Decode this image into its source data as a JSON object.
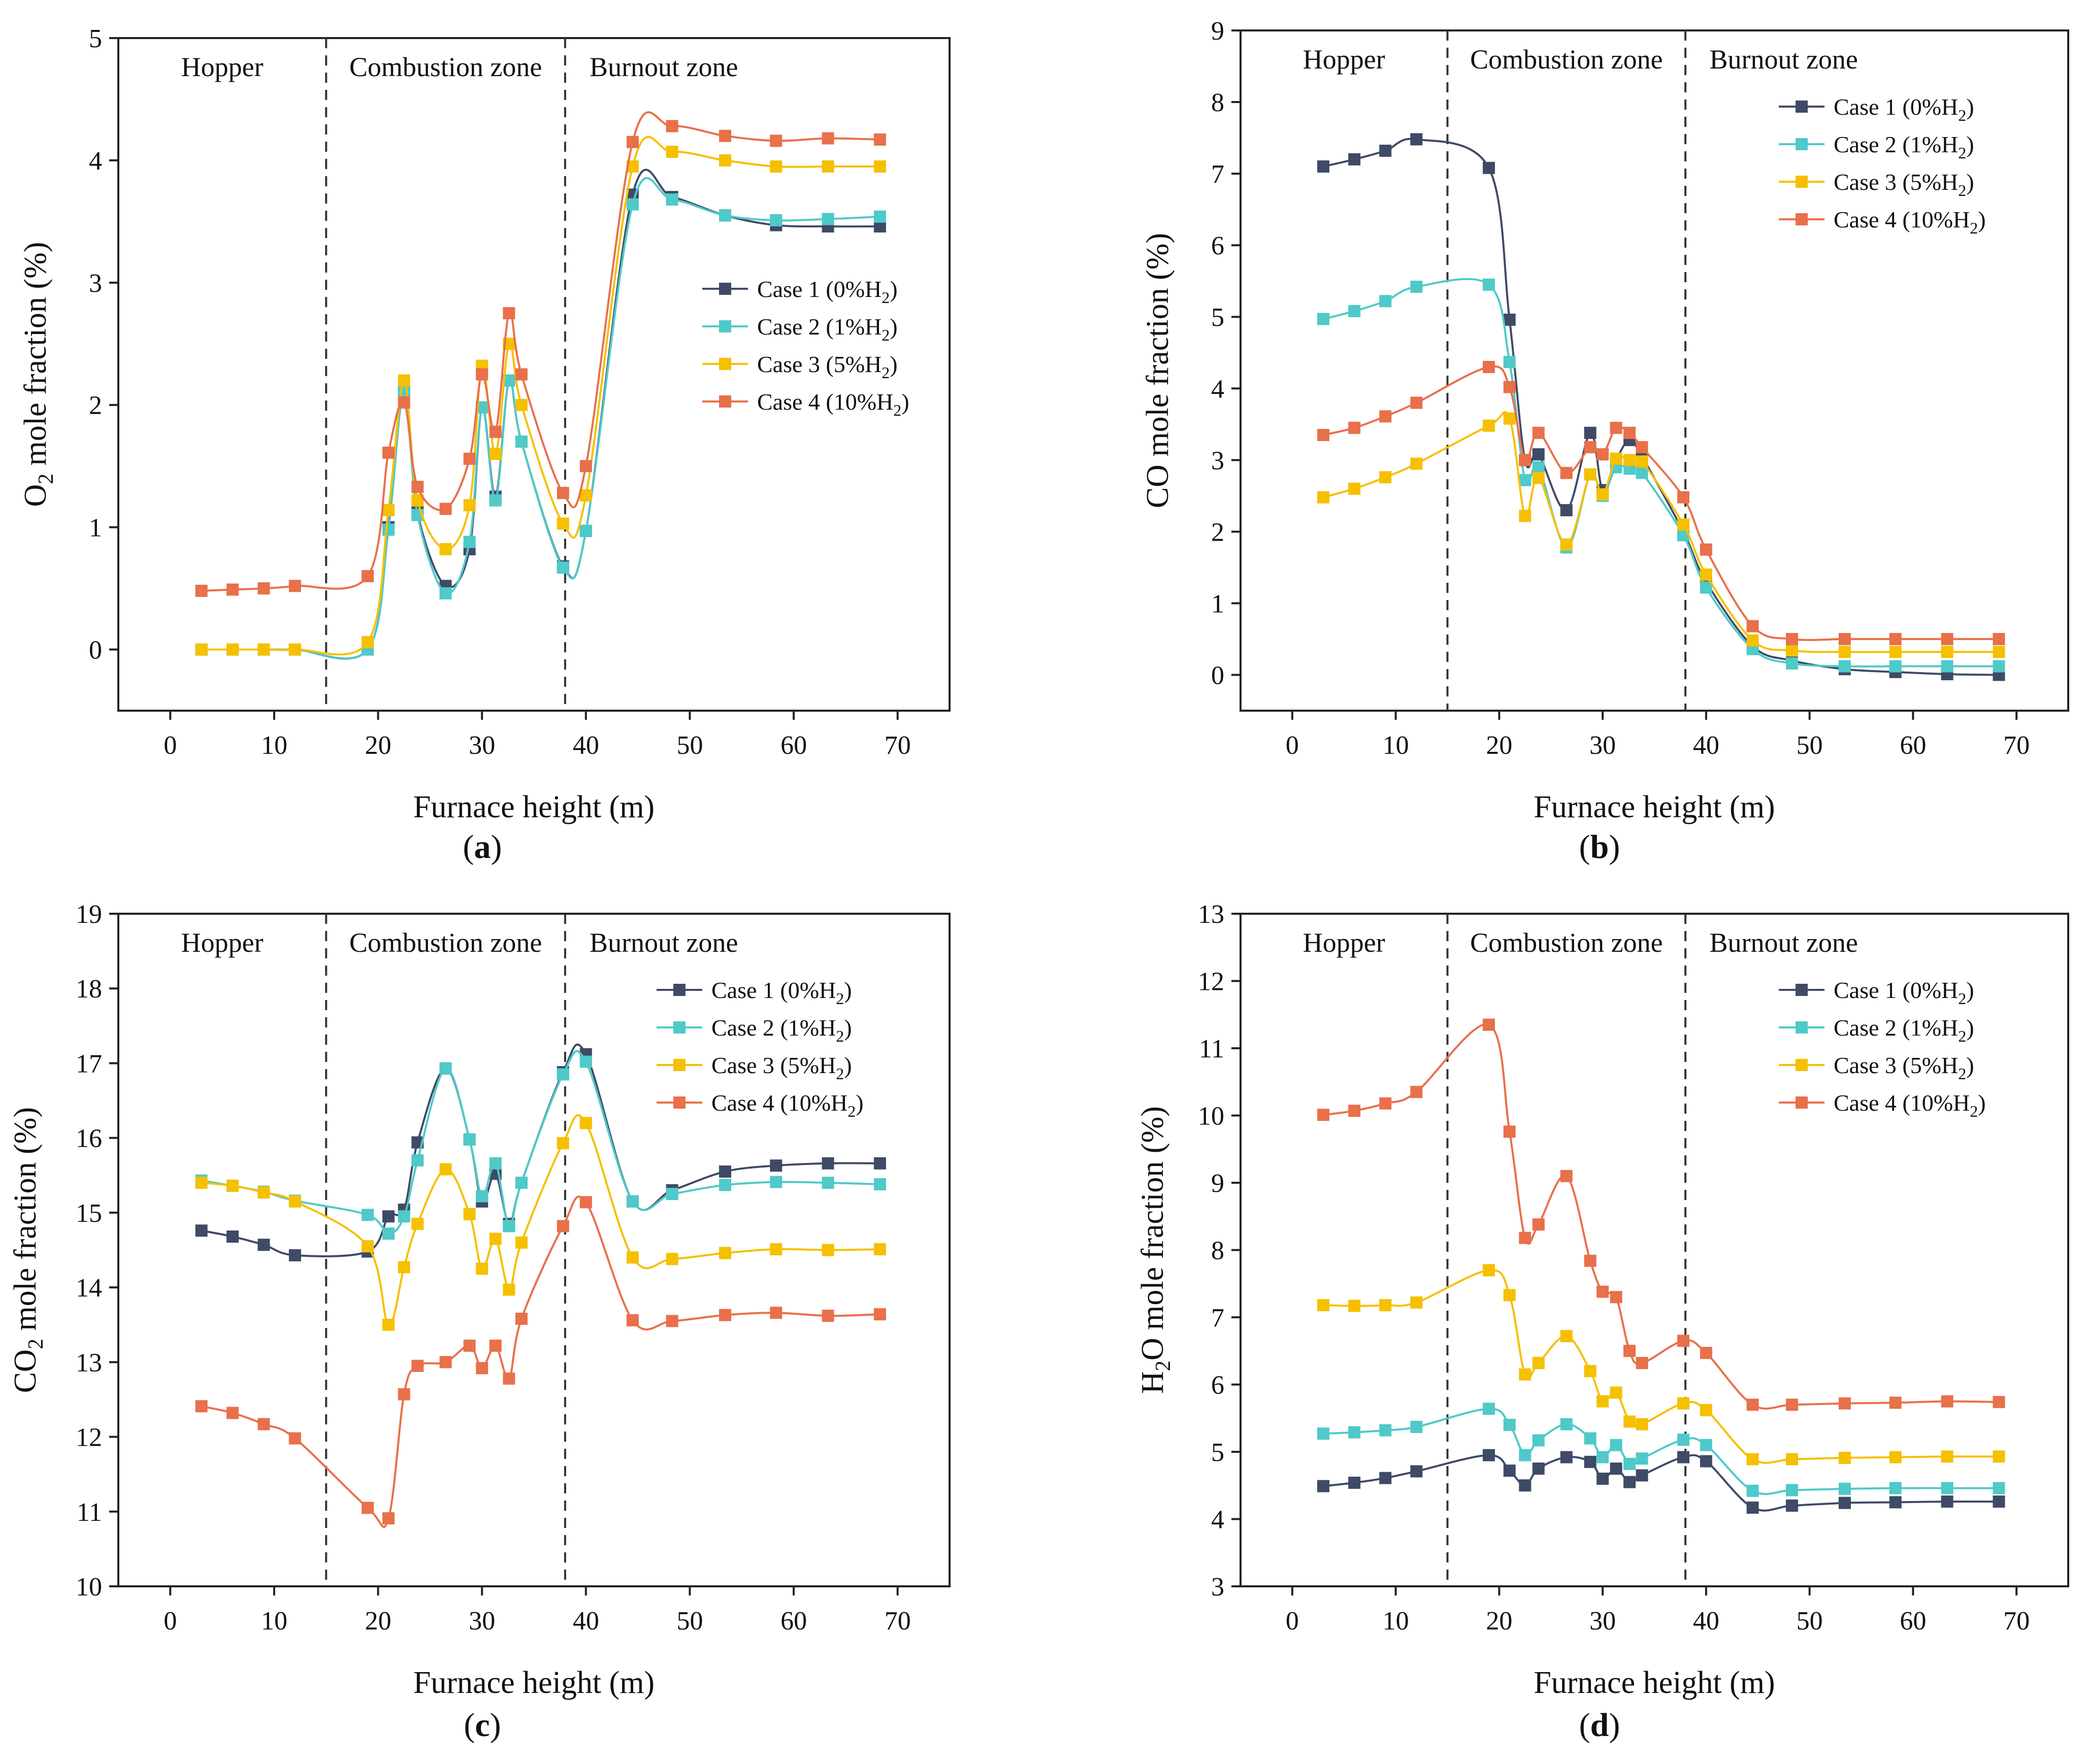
{
  "chart_data": [
    {
      "type": "line",
      "panel_label": "a",
      "xlabel": "Furnace height (m)",
      "ylabel": "O2 mole fraction (%)",
      "ylabel_main": "O",
      "ylabel_sub": "2",
      "ylabel_rest": " mole fraction (%)",
      "xlim": [
        -5,
        75
      ],
      "ylim": [
        -0.5,
        5
      ],
      "xticks": [
        0,
        10,
        20,
        30,
        40,
        50,
        60,
        70
      ],
      "yticks": [
        0,
        1,
        2,
        3,
        4,
        5
      ],
      "zone_boundaries": [
        15,
        38
      ],
      "zones": [
        "Hopper",
        "Combustion zone",
        "Burnout zone"
      ],
      "legend_position": "middle-right",
      "series": [
        {
          "name": "Case 1 (0%H2)",
          "label_prefix": "Case 1 (0%H",
          "label_sub": "2",
          "label_suffix": ")",
          "color": "#3f4a66",
          "x": [
            3,
            6,
            9,
            12,
            19,
            21,
            22.5,
            23.8,
            26.5,
            28.8,
            30,
            31.3,
            32.6,
            33.8,
            37.8,
            40,
            44.5,
            48.3,
            53.4,
            58.3,
            63.3,
            68.3
          ],
          "y": [
            0,
            0,
            0,
            0,
            0,
            1,
            2.12,
            1.12,
            0.52,
            0.82,
            1.98,
            1.25,
            2.2,
            1.7,
            0.68,
            0.97,
            3.72,
            3.7,
            3.55,
            3.47,
            3.46,
            3.46
          ]
        },
        {
          "name": "Case 2 (1%H2)",
          "label_prefix": "Case 2 (1%H",
          "label_sub": "2",
          "label_suffix": ")",
          "color": "#4fc9c9",
          "x": [
            3,
            6,
            9,
            12,
            19,
            21,
            22.5,
            23.8,
            26.5,
            28.8,
            30,
            31.3,
            32.6,
            33.8,
            37.8,
            40,
            44.5,
            48.3,
            53.4,
            58.3,
            63.3,
            68.3
          ],
          "y": [
            0,
            0,
            0,
            0,
            0,
            0.98,
            2.12,
            1.1,
            0.46,
            0.88,
            1.98,
            1.22,
            2.2,
            1.7,
            0.67,
            0.97,
            3.64,
            3.68,
            3.55,
            3.51,
            3.52,
            3.54
          ]
        },
        {
          "name": "Case 3 (5%H2)",
          "label_prefix": "Case 3 (5%H",
          "label_sub": "2",
          "label_suffix": ")",
          "color": "#f5c000",
          "x": [
            3,
            6,
            9,
            12,
            19,
            21,
            22.5,
            23.8,
            26.5,
            28.8,
            30,
            31.3,
            32.6,
            33.8,
            37.8,
            40,
            44.5,
            48.3,
            53.4,
            58.3,
            63.3,
            68.3
          ],
          "y": [
            0,
            0,
            0,
            0,
            0.06,
            1.14,
            2.2,
            1.22,
            0.82,
            1.18,
            2.32,
            1.6,
            2.5,
            2.0,
            1.03,
            1.26,
            3.95,
            4.07,
            4.0,
            3.95,
            3.95,
            3.95
          ]
        },
        {
          "name": "Case 4 (10%H2)",
          "label_prefix": "Case 4 (10%H",
          "label_sub": "2",
          "label_suffix": ")",
          "color": "#e8704a",
          "x": [
            3,
            6,
            9,
            12,
            19,
            21,
            22.5,
            23.8,
            26.5,
            28.8,
            30,
            31.3,
            32.6,
            33.8,
            37.8,
            40,
            44.5,
            48.3,
            53.4,
            58.3,
            63.3,
            68.3
          ],
          "y": [
            0.48,
            0.49,
            0.5,
            0.52,
            0.6,
            1.61,
            2.02,
            1.33,
            1.15,
            1.56,
            2.25,
            1.78,
            2.75,
            2.25,
            1.28,
            1.5,
            4.15,
            4.28,
            4.2,
            4.16,
            4.18,
            4.17
          ]
        }
      ]
    },
    {
      "type": "line",
      "panel_label": "b",
      "xlabel": "Furnace height (m)",
      "ylabel": "CO mole fraction (%)",
      "ylabel_main": "CO mole fraction (%)",
      "ylabel_sub": "",
      "ylabel_rest": "",
      "xlim": [
        -5,
        75
      ],
      "ylim": [
        -0.5,
        9
      ],
      "xticks": [
        0,
        10,
        20,
        30,
        40,
        50,
        60,
        70
      ],
      "yticks": [
        0,
        1,
        2,
        3,
        4,
        5,
        6,
        7,
        8,
        9
      ],
      "zone_boundaries": [
        15,
        38
      ],
      "zones": [
        "Hopper",
        "Combustion zone",
        "Burnout zone"
      ],
      "legend_position": "top-right",
      "series": [
        {
          "name": "Case 1 (0%H2)",
          "label_prefix": "Case 1 (0%H",
          "label_sub": "2",
          "label_suffix": ")",
          "color": "#3f4a66",
          "x": [
            3,
            6,
            9,
            12,
            19,
            21,
            22.5,
            23.8,
            26.5,
            28.8,
            30,
            31.3,
            32.6,
            33.8,
            37.8,
            40,
            44.5,
            48.3,
            53.4,
            58.3,
            63.3,
            68.3
          ],
          "y": [
            7.1,
            7.2,
            7.32,
            7.48,
            7.08,
            4.96,
            3.0,
            3.08,
            2.3,
            3.38,
            2.58,
            3.0,
            3.28,
            3.05,
            2.0,
            1.3,
            0.4,
            0.2,
            0.08,
            0.04,
            0.01,
            0.0
          ]
        },
        {
          "name": "Case 2 (1%H2)",
          "label_prefix": "Case 2 (1%H",
          "label_sub": "2",
          "label_suffix": ")",
          "color": "#4fc9c9",
          "x": [
            3,
            6,
            9,
            12,
            19,
            21,
            22.5,
            23.8,
            26.5,
            28.8,
            30,
            31.3,
            32.6,
            33.8,
            37.8,
            40,
            44.5,
            48.3,
            53.4,
            58.3,
            63.3,
            68.3
          ],
          "y": [
            4.97,
            5.08,
            5.22,
            5.42,
            5.45,
            4.37,
            2.72,
            2.9,
            1.78,
            2.8,
            2.5,
            2.9,
            2.88,
            2.82,
            1.95,
            1.22,
            0.36,
            0.16,
            0.12,
            0.12,
            0.12,
            0.12
          ]
        },
        {
          "name": "Case 3 (5%H2)",
          "label_prefix": "Case 3 (5%H",
          "label_sub": "2",
          "label_suffix": ")",
          "color": "#f5c000",
          "x": [
            3,
            6,
            9,
            12,
            19,
            21,
            22.5,
            23.8,
            26.5,
            28.8,
            30,
            31.3,
            32.6,
            33.8,
            37.8,
            40,
            44.5,
            48.3,
            53.4,
            58.3,
            63.3,
            68.3
          ],
          "y": [
            2.48,
            2.6,
            2.76,
            2.95,
            3.48,
            3.58,
            2.22,
            2.75,
            1.82,
            2.8,
            2.52,
            3.02,
            3.0,
            2.98,
            2.1,
            1.4,
            0.48,
            0.34,
            0.32,
            0.32,
            0.32,
            0.32
          ]
        },
        {
          "name": "Case 4 (10%H2)",
          "label_prefix": "Case 4 (10%H",
          "label_sub": "2",
          "label_suffix": ")",
          "color": "#e8704a",
          "x": [
            3,
            6,
            9,
            12,
            19,
            21,
            22.5,
            23.8,
            26.5,
            28.8,
            30,
            31.3,
            32.6,
            33.8,
            37.8,
            40,
            44.5,
            48.3,
            53.4,
            58.3,
            63.3,
            68.3
          ],
          "y": [
            3.35,
            3.45,
            3.61,
            3.8,
            4.3,
            4.02,
            3.0,
            3.38,
            2.82,
            3.18,
            3.08,
            3.45,
            3.38,
            3.18,
            2.48,
            1.75,
            0.68,
            0.5,
            0.5,
            0.5,
            0.5,
            0.5
          ]
        }
      ]
    },
    {
      "type": "line",
      "panel_label": "c",
      "xlabel": "Furnace height (m)",
      "ylabel": "CO2 mole fraction (%)",
      "ylabel_main": "CO",
      "ylabel_sub": "2",
      "ylabel_rest": " mole fraction (%)",
      "xlim": [
        -5,
        75
      ],
      "ylim": [
        10,
        19
      ],
      "xticks": [
        0,
        10,
        20,
        30,
        40,
        50,
        60,
        70
      ],
      "yticks": [
        10,
        11,
        12,
        13,
        14,
        15,
        16,
        17,
        18,
        19
      ],
      "zone_boundaries": [
        15,
        38
      ],
      "zones": [
        "Hopper",
        "Combustion zone",
        "Burnout zone"
      ],
      "legend_position": "top-right",
      "series": [
        {
          "name": "Case 1 (0%H2)",
          "label_prefix": "Case 1 (0%H",
          "label_sub": "2",
          "label_suffix": ")",
          "color": "#3f4a66",
          "x": [
            3,
            6,
            9,
            12,
            19,
            21,
            22.5,
            23.8,
            26.5,
            28.8,
            30,
            31.3,
            32.6,
            33.8,
            37.8,
            40,
            44.5,
            48.3,
            53.4,
            58.3,
            63.3,
            68.3
          ],
          "y": [
            14.76,
            14.68,
            14.57,
            14.43,
            14.48,
            14.95,
            15.04,
            15.94,
            16.93,
            15.98,
            15.15,
            15.52,
            14.85,
            15.4,
            16.88,
            17.12,
            15.15,
            15.3,
            15.55,
            15.63,
            15.66,
            15.66
          ]
        },
        {
          "name": "Case 2 (1%H2)",
          "label_prefix": "Case 2 (1%H",
          "label_sub": "2",
          "label_suffix": ")",
          "color": "#4fc9c9",
          "x": [
            3,
            6,
            9,
            12,
            19,
            21,
            22.5,
            23.8,
            26.5,
            28.8,
            30,
            31.3,
            32.6,
            33.8,
            37.8,
            40,
            44.5,
            48.3,
            53.4,
            58.3,
            63.3,
            68.3
          ],
          "y": [
            15.43,
            15.36,
            15.28,
            15.16,
            14.97,
            14.72,
            14.95,
            15.7,
            16.93,
            15.98,
            15.22,
            15.66,
            14.82,
            15.4,
            16.85,
            17.02,
            15.15,
            15.25,
            15.37,
            15.41,
            15.4,
            15.38
          ]
        },
        {
          "name": "Case 3 (5%H2)",
          "label_prefix": "Case 3 (5%H",
          "label_sub": "2",
          "label_suffix": ")",
          "color": "#f5c000",
          "x": [
            3,
            6,
            9,
            12,
            19,
            21,
            22.5,
            23.8,
            26.5,
            28.8,
            30,
            31.3,
            32.6,
            33.8,
            37.8,
            40,
            44.5,
            48.3,
            53.4,
            58.3,
            63.3,
            68.3
          ],
          "y": [
            15.4,
            15.36,
            15.27,
            15.15,
            14.55,
            13.5,
            14.27,
            14.85,
            15.58,
            14.98,
            14.25,
            14.65,
            13.97,
            14.6,
            15.93,
            16.2,
            14.4,
            14.38,
            14.46,
            14.51,
            14.5,
            14.51
          ]
        },
        {
          "name": "Case 4 (10%H2)",
          "label_prefix": "Case 4 (10%H",
          "label_sub": "2",
          "label_suffix": ")",
          "color": "#e8704a",
          "x": [
            3,
            6,
            9,
            12,
            19,
            21,
            22.5,
            23.8,
            26.5,
            28.8,
            30,
            31.3,
            32.6,
            33.8,
            37.8,
            40,
            44.5,
            48.3,
            53.4,
            58.3,
            63.3,
            68.3
          ],
          "y": [
            12.41,
            12.32,
            12.17,
            11.98,
            11.05,
            10.91,
            12.57,
            12.95,
            13.0,
            13.22,
            12.92,
            13.22,
            12.78,
            13.58,
            14.82,
            15.14,
            13.56,
            13.55,
            13.63,
            13.66,
            13.62,
            13.64
          ]
        }
      ]
    },
    {
      "type": "line",
      "panel_label": "d",
      "xlabel": "Furnace height (m)",
      "ylabel": "H2O mole fraction (%)",
      "ylabel_main": "H",
      "ylabel_sub": "2",
      "ylabel_rest": "O mole fraction (%)",
      "xlim": [
        -5,
        75
      ],
      "ylim": [
        3,
        13
      ],
      "xticks": [
        0,
        10,
        20,
        30,
        40,
        50,
        60,
        70
      ],
      "yticks": [
        3,
        4,
        5,
        6,
        7,
        8,
        9,
        10,
        11,
        12,
        13
      ],
      "zone_boundaries": [
        15,
        38
      ],
      "zones": [
        "Hopper",
        "Combustion zone",
        "Burnout zone"
      ],
      "legend_position": "top-right",
      "series": [
        {
          "name": "Case 1 (0%H2)",
          "label_prefix": "Case 1 (0%H",
          "label_sub": "2",
          "label_suffix": ")",
          "color": "#3f4a66",
          "x": [
            3,
            6,
            9,
            12,
            19,
            21,
            22.5,
            23.8,
            26.5,
            28.8,
            30,
            31.3,
            32.6,
            33.8,
            37.8,
            40,
            44.5,
            48.3,
            53.4,
            58.3,
            63.3,
            68.3
          ],
          "y": [
            4.49,
            4.54,
            4.61,
            4.71,
            4.95,
            4.72,
            4.5,
            4.75,
            4.92,
            4.85,
            4.6,
            4.75,
            4.55,
            4.65,
            4.92,
            4.86,
            4.17,
            4.2,
            4.24,
            4.25,
            4.26,
            4.26
          ]
        },
        {
          "name": "Case 2 (1%H2)",
          "label_prefix": "Case 2 (1%H",
          "label_sub": "2",
          "label_suffix": ")",
          "color": "#4fc9c9",
          "x": [
            3,
            6,
            9,
            12,
            19,
            21,
            22.5,
            23.8,
            26.5,
            28.8,
            30,
            31.3,
            32.6,
            33.8,
            37.8,
            40,
            44.5,
            48.3,
            53.4,
            58.3,
            63.3,
            68.3
          ],
          "y": [
            5.27,
            5.29,
            5.32,
            5.37,
            5.64,
            5.4,
            4.95,
            5.17,
            5.41,
            5.2,
            4.92,
            5.1,
            4.82,
            4.9,
            5.18,
            5.1,
            4.42,
            4.43,
            4.45,
            4.46,
            4.46,
            4.46
          ]
        },
        {
          "name": "Case 3 (5%H2)",
          "label_prefix": "Case 3 (5%H",
          "label_sub": "2",
          "label_suffix": ")",
          "color": "#f5c000",
          "x": [
            3,
            6,
            9,
            12,
            19,
            21,
            22.5,
            23.8,
            26.5,
            28.8,
            30,
            31.3,
            32.6,
            33.8,
            37.8,
            40,
            44.5,
            48.3,
            53.4,
            58.3,
            63.3,
            68.3
          ],
          "y": [
            7.18,
            7.17,
            7.18,
            7.22,
            7.7,
            7.33,
            6.15,
            6.32,
            6.72,
            6.2,
            5.75,
            5.88,
            5.45,
            5.41,
            5.72,
            5.62,
            4.89,
            4.89,
            4.91,
            4.92,
            4.93,
            4.93
          ]
        },
        {
          "name": "Case 4 (10%H2)",
          "label_prefix": "Case 4 (10%H",
          "label_sub": "2",
          "label_suffix": ")",
          "color": "#e8704a",
          "x": [
            3,
            6,
            9,
            12,
            19,
            21,
            22.5,
            23.8,
            26.5,
            28.8,
            30,
            31.3,
            32.6,
            33.8,
            37.8,
            40,
            44.5,
            48.3,
            53.4,
            58.3,
            63.3,
            68.3
          ],
          "y": [
            10.01,
            10.07,
            10.18,
            10.35,
            11.35,
            9.76,
            8.18,
            8.38,
            9.1,
            7.84,
            7.38,
            7.3,
            6.5,
            6.32,
            6.65,
            6.47,
            5.7,
            5.7,
            5.72,
            5.73,
            5.75,
            5.74
          ]
        }
      ]
    }
  ]
}
